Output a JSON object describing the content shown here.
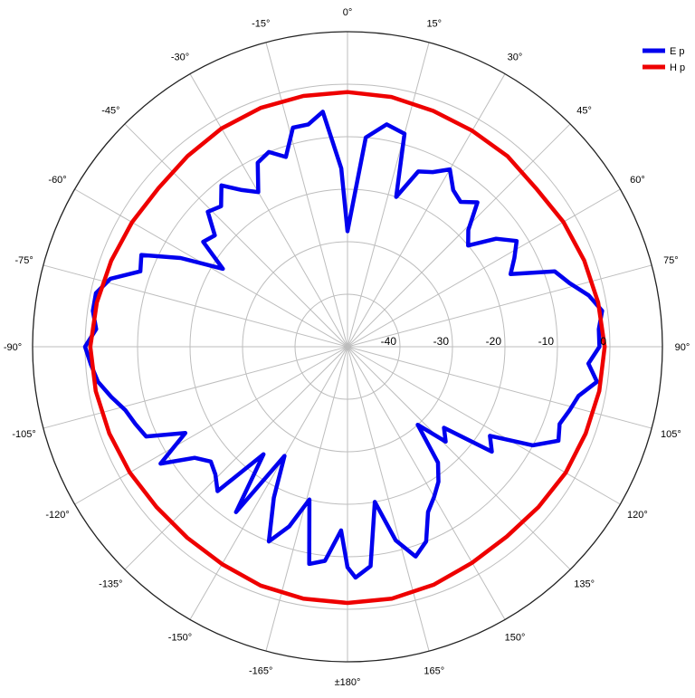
{
  "chart_data": {
    "type": "polar_line",
    "title": "",
    "angle_labels": [
      "0°",
      "15°",
      "30°",
      "45°",
      "60°",
      "75°",
      "90°",
      "105°",
      "120°",
      "135°",
      "150°",
      "165°",
      "±180°",
      "-165°",
      "-150°",
      "-135°",
      "-120°",
      "-105°",
      "-90°",
      "-75°",
      "-60°",
      "-45°",
      "-30°",
      "-15°"
    ],
    "angle_direction": "clockwise",
    "zero_location": "top",
    "radial_ticks": [
      -40,
      -30,
      -20,
      -10,
      0
    ],
    "radial_tick_labels": [
      "-40",
      "-30",
      "-20",
      "-10",
      "0"
    ],
    "rlim": [
      -50,
      5
    ],
    "grid": true,
    "legend_position": "top-right",
    "series": [
      {
        "name": "E p",
        "color": "#0000ee",
        "points": [
          [
            0,
            -28
          ],
          [
            5,
            -10
          ],
          [
            10,
            -7
          ],
          [
            15,
            -8
          ],
          [
            18,
            -20
          ],
          [
            22,
            -14
          ],
          [
            26,
            -13
          ],
          [
            30,
            -11
          ],
          [
            34,
            -14
          ],
          [
            38,
            -15
          ],
          [
            42,
            -13
          ],
          [
            46,
            -18
          ],
          [
            50,
            -20
          ],
          [
            54,
            -15
          ],
          [
            58,
            -12
          ],
          [
            62,
            -14
          ],
          [
            66,
            -16
          ],
          [
            70,
            -8
          ],
          [
            74,
            -6
          ],
          [
            78,
            -3
          ],
          [
            82,
            -1
          ],
          [
            86,
            -2
          ],
          [
            90,
            -2
          ],
          [
            94,
            -4
          ],
          [
            98,
            -2
          ],
          [
            102,
            -5
          ],
          [
            106,
            -6
          ],
          [
            110,
            -7
          ],
          [
            114,
            -6
          ],
          [
            118,
            -10
          ],
          [
            122,
            -18
          ],
          [
            126,
            -16
          ],
          [
            130,
            -26
          ],
          [
            134,
            -24
          ],
          [
            138,
            -30
          ],
          [
            142,
            -22
          ],
          [
            146,
            -19
          ],
          [
            150,
            -17
          ],
          [
            154,
            -15
          ],
          [
            158,
            -10
          ],
          [
            162,
            -8
          ],
          [
            166,
            -12
          ],
          [
            170,
            -20
          ],
          [
            174,
            -8
          ],
          [
            178,
            -6
          ],
          [
            180,
            -8
          ],
          [
            182,
            -15
          ],
          [
            186,
            -9
          ],
          [
            190,
            -8
          ],
          [
            194,
            -20
          ],
          [
            198,
            -14
          ],
          [
            202,
            -10
          ],
          [
            206,
            -18
          ],
          [
            210,
            -26
          ],
          [
            214,
            -12
          ],
          [
            218,
            -24
          ],
          [
            222,
            -13
          ],
          [
            226,
            -15
          ],
          [
            230,
            -16
          ],
          [
            234,
            -14
          ],
          [
            238,
            -8
          ],
          [
            242,
            -15
          ],
          [
            246,
            -8
          ],
          [
            250,
            -7
          ],
          [
            254,
            -6
          ],
          [
            258,
            -4
          ],
          [
            262,
            -2
          ],
          [
            266,
            -1
          ],
          [
            270,
            0
          ],
          [
            274,
            -2
          ],
          [
            278,
            -1
          ],
          [
            282,
            -1
          ],
          [
            286,
            -3
          ],
          [
            290,
            -8
          ],
          [
            294,
            -7
          ],
          [
            298,
            -14
          ],
          [
            302,
            -22
          ],
          [
            306,
            -16
          ],
          [
            310,
            -17
          ],
          [
            314,
            -13
          ],
          [
            318,
            -14
          ],
          [
            322,
            -11
          ],
          [
            326,
            -14
          ],
          [
            330,
            -16
          ],
          [
            334,
            -11
          ],
          [
            338,
            -10
          ],
          [
            342,
            -12
          ],
          [
            346,
            -7
          ],
          [
            350,
            -7
          ],
          [
            354,
            -5
          ],
          [
            358,
            -16
          ],
          [
            360,
            -28
          ]
        ]
      },
      {
        "name": "H p",
        "color": "#ee0000",
        "points": [
          [
            0,
            -1.5
          ],
          [
            10,
            -1.7
          ],
          [
            20,
            -2.2
          ],
          [
            30,
            -2.5
          ],
          [
            40,
            -2.6
          ],
          [
            50,
            -3.1
          ],
          [
            60,
            -2.5
          ],
          [
            70,
            -2.0
          ],
          [
            80,
            -1.5
          ],
          [
            90,
            -1.0
          ],
          [
            100,
            -1.3
          ],
          [
            110,
            -1.7
          ],
          [
            120,
            -2.0
          ],
          [
            130,
            -2.5
          ],
          [
            140,
            -2.8
          ],
          [
            150,
            -2.5
          ],
          [
            160,
            -1.8
          ],
          [
            170,
            -1.3
          ],
          [
            180,
            -1.2
          ],
          [
            190,
            -1.3
          ],
          [
            200,
            -1.6
          ],
          [
            210,
            -2.2
          ],
          [
            220,
            -2.5
          ],
          [
            230,
            -2.5
          ],
          [
            240,
            -2.1
          ],
          [
            250,
            -1.7
          ],
          [
            260,
            -1.3
          ],
          [
            270,
            -1.0
          ],
          [
            280,
            -1.5
          ],
          [
            290,
            -2.1
          ],
          [
            300,
            -2.6
          ],
          [
            310,
            -3.0
          ],
          [
            320,
            -2.6
          ],
          [
            330,
            -2.0
          ],
          [
            340,
            -1.6
          ],
          [
            350,
            -1.5
          ],
          [
            360,
            -1.5
          ]
        ]
      }
    ]
  }
}
